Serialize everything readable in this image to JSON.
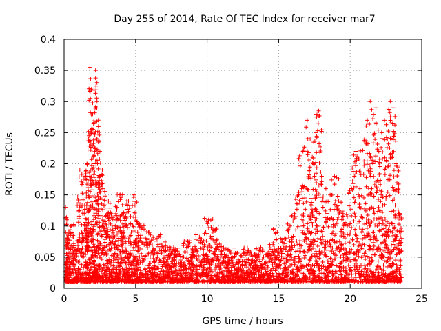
{
  "chart_data": {
    "type": "scatter",
    "title": "Day 255 of 2014, Rate Of TEC Index for receiver mar7",
    "xlabel": "GPS time / hours",
    "ylabel": "ROTI / TECUs",
    "xlim": [
      0,
      25
    ],
    "ylim": [
      0,
      0.4
    ],
    "x_ticks": [
      0,
      5,
      10,
      15,
      20,
      25
    ],
    "x_tick_labels": [
      "0",
      "5",
      "10",
      "15",
      "20",
      "25"
    ],
    "y_ticks": [
      0,
      0.05,
      0.1,
      0.15,
      0.2,
      0.25,
      0.3,
      0.35,
      0.4
    ],
    "y_tick_labels": [
      "0",
      "0.05",
      "0.1",
      "0.15",
      "0.2",
      "0.25",
      "0.3",
      "0.35",
      "0.4"
    ],
    "grid": true,
    "marker": "+",
    "color": "#ff0000",
    "series": [
      {
        "name": "ROTI",
        "points_note": "dense scatter, ~hundreds of points; representative subset",
        "x": [
          0.1,
          0.2,
          0.3,
          0.5,
          0.7,
          0.9,
          1.1,
          1.3,
          1.5,
          1.6,
          1.7,
          1.8,
          1.9,
          2.0,
          2.1,
          2.2,
          2.3,
          2.4,
          2.5,
          2.7,
          2.9,
          3.1,
          3.3,
          3.5,
          3.7,
          3.9,
          4.1,
          4.3,
          4.5,
          4.7,
          4.9,
          5.1,
          5.3,
          5.6,
          5.9,
          6.2,
          6.5,
          6.8,
          7.1,
          7.4,
          7.7,
          8.0,
          8.3,
          8.6,
          8.9,
          9.2,
          9.5,
          9.8,
          10.1,
          10.4,
          10.7,
          11.0,
          11.3,
          11.6,
          11.9,
          12.2,
          12.5,
          12.8,
          13.1,
          13.4,
          13.7,
          14.0,
          14.3,
          14.6,
          14.9,
          15.2,
          15.5,
          15.8,
          16.1,
          16.4,
          16.7,
          17.0,
          17.2,
          17.4,
          17.6,
          17.8,
          18.0,
          18.3,
          18.6,
          18.9,
          19.2,
          19.5,
          19.8,
          20.1,
          20.4,
          20.7,
          21.0,
          21.2,
          21.4,
          21.6,
          21.8,
          22.0,
          22.2,
          22.4,
          22.6,
          22.8,
          23.0,
          23.2,
          23.4,
          23.6
        ],
        "y": [
          0.13,
          0.08,
          0.05,
          0.1,
          0.04,
          0.06,
          0.19,
          0.12,
          0.18,
          0.2,
          0.24,
          0.355,
          0.32,
          0.28,
          0.2,
          0.35,
          0.3,
          0.26,
          0.22,
          0.16,
          0.09,
          0.14,
          0.12,
          0.1,
          0.13,
          0.15,
          0.12,
          0.1,
          0.14,
          0.09,
          0.15,
          0.08,
          0.1,
          0.07,
          0.09,
          0.06,
          0.08,
          0.07,
          0.06,
          0.05,
          0.06,
          0.04,
          0.05,
          0.07,
          0.05,
          0.06,
          0.08,
          0.07,
          0.11,
          0.09,
          0.07,
          0.06,
          0.05,
          0.06,
          0.05,
          0.04,
          0.05,
          0.06,
          0.04,
          0.05,
          0.06,
          0.04,
          0.05,
          0.07,
          0.09,
          0.06,
          0.08,
          0.1,
          0.12,
          0.15,
          0.22,
          0.27,
          0.24,
          0.2,
          0.25,
          0.285,
          0.18,
          0.16,
          0.15,
          0.18,
          0.14,
          0.12,
          0.1,
          0.16,
          0.22,
          0.19,
          0.24,
          0.27,
          0.3,
          0.2,
          0.29,
          0.22,
          0.25,
          0.27,
          0.24,
          0.3,
          0.29,
          0.2,
          0.12,
          0.08
        ]
      }
    ]
  }
}
